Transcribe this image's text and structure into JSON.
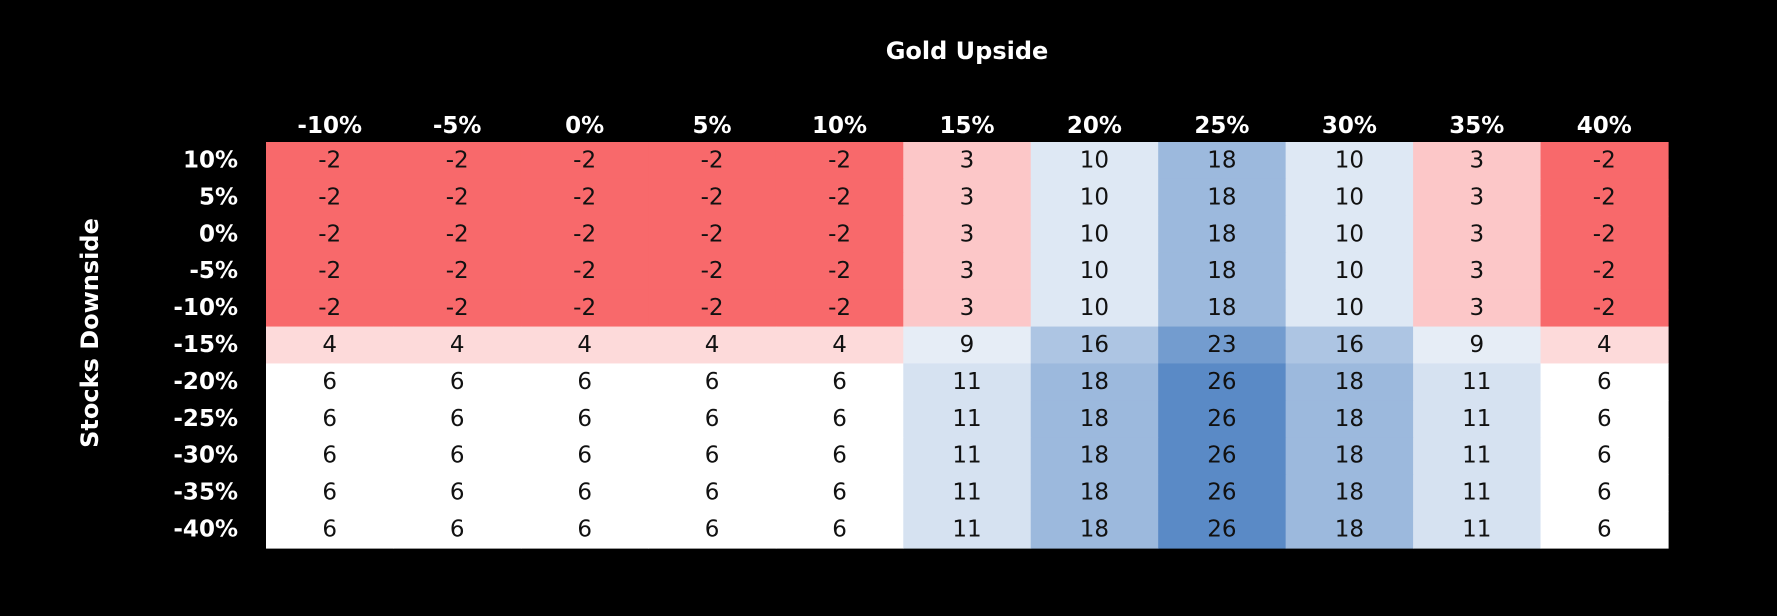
{
  "chart_data": {
    "type": "heatmap",
    "title": "",
    "xlabel": "Gold Upside",
    "ylabel": "Stocks Downside",
    "columns": [
      "-10%",
      "-5%",
      "0%",
      "5%",
      "10%",
      "15%",
      "20%",
      "25%",
      "30%",
      "35%",
      "40%"
    ],
    "rows": [
      "10%",
      "5%",
      "0%",
      "-5%",
      "-10%",
      "-15%",
      "-20%",
      "-25%",
      "-30%",
      "-35%",
      "-40%"
    ],
    "values": [
      [
        -2,
        -2,
        -2,
        -2,
        -2,
        3,
        10,
        18,
        10,
        3,
        -2
      ],
      [
        -2,
        -2,
        -2,
        -2,
        -2,
        3,
        10,
        18,
        10,
        3,
        -2
      ],
      [
        -2,
        -2,
        -2,
        -2,
        -2,
        3,
        10,
        18,
        10,
        3,
        -2
      ],
      [
        -2,
        -2,
        -2,
        -2,
        -2,
        3,
        10,
        18,
        10,
        3,
        -2
      ],
      [
        -2,
        -2,
        -2,
        -2,
        -2,
        3,
        10,
        18,
        10,
        3,
        -2
      ],
      [
        4,
        4,
        4,
        4,
        4,
        9,
        16,
        23,
        16,
        9,
        4
      ],
      [
        6,
        6,
        6,
        6,
        6,
        11,
        18,
        26,
        18,
        11,
        6
      ],
      [
        6,
        6,
        6,
        6,
        6,
        11,
        18,
        26,
        18,
        11,
        6
      ],
      [
        6,
        6,
        6,
        6,
        6,
        11,
        18,
        26,
        18,
        11,
        6
      ],
      [
        6,
        6,
        6,
        6,
        6,
        11,
        18,
        26,
        18,
        11,
        6
      ],
      [
        6,
        6,
        6,
        6,
        6,
        11,
        18,
        26,
        18,
        11,
        6
      ]
    ],
    "color_scale": {
      "low": "#f8696b",
      "mid": "#ffffff",
      "high": "#5a8ac6",
      "mid_value": 6
    },
    "background": "#000000"
  }
}
